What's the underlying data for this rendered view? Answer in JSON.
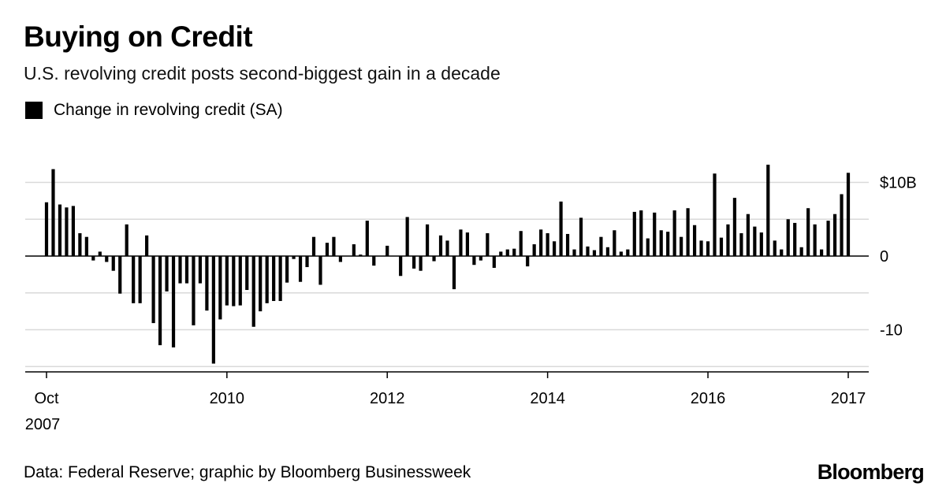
{
  "title": "Buying on Credit",
  "subtitle": "U.S. revolving credit posts second-biggest gain in a decade",
  "source": "Data: Federal Reserve; graphic by Bloomberg Businessweek",
  "brand": "Bloomberg",
  "chart_data": {
    "type": "bar",
    "title": "Buying on Credit",
    "subtitle": "U.S. revolving credit posts second-biggest gain in a decade",
    "legend": [
      {
        "name": "Change in revolving credit (SA)",
        "color": "#000000"
      }
    ],
    "legend_placement": "top-left",
    "grid": true,
    "y_axis_side": "right",
    "ylim": [
      -15,
      12
    ],
    "y_ticks": [
      {
        "value": 10,
        "label": "$10B"
      },
      {
        "value": 0,
        "label": "0"
      },
      {
        "value": -10,
        "label": "-10"
      }
    ],
    "x_ticks": [
      {
        "index": 0,
        "label": "Oct",
        "sublabel": "2007"
      },
      {
        "index": 27,
        "label": "2010",
        "sublabel": ""
      },
      {
        "index": 51,
        "label": "2012",
        "sublabel": ""
      },
      {
        "index": 75,
        "label": "2014",
        "sublabel": ""
      },
      {
        "index": 99,
        "label": "2016",
        "sublabel": ""
      },
      {
        "index": 120,
        "label": "2017",
        "sublabel": ""
      }
    ],
    "series": [
      {
        "name": "Change in revolving credit (SA)",
        "color": "#000000",
        "start": "2007-10",
        "frequency": "monthly",
        "values": [
          7.3,
          11.8,
          7.0,
          6.6,
          6.8,
          3.1,
          2.6,
          -0.6,
          0.6,
          -0.8,
          -2.0,
          -5.1,
          4.3,
          -6.4,
          -6.4,
          2.8,
          -9.1,
          -12.1,
          -4.8,
          -12.4,
          -3.7,
          -3.7,
          -9.4,
          -3.7,
          -7.4,
          -14.6,
          -8.6,
          -6.7,
          -6.8,
          -6.7,
          -4.6,
          -9.6,
          -7.5,
          -6.4,
          -6.1,
          -6.1,
          -3.6,
          -0.4,
          -3.5,
          -1.5,
          2.6,
          -3.9,
          1.8,
          2.6,
          -0.8,
          0.0,
          1.6,
          0.2,
          4.8,
          -1.3,
          0.0,
          1.4,
          0.0,
          -2.7,
          5.3,
          -1.7,
          -2.0,
          4.3,
          -0.7,
          2.8,
          2.1,
          -4.5,
          3.6,
          3.2,
          -1.2,
          -0.6,
          3.1,
          -1.6,
          0.6,
          0.9,
          1.0,
          3.4,
          -1.4,
          1.6,
          3.6,
          3.1,
          2.0,
          7.4,
          3.0,
          0.9,
          5.2,
          1.3,
          0.8,
          2.6,
          1.2,
          3.5,
          0.6,
          0.9,
          6.0,
          6.2,
          2.4,
          5.9,
          3.5,
          3.3,
          6.2,
          2.6,
          6.5,
          4.2,
          2.1,
          2.0,
          11.2,
          2.5,
          4.3,
          7.9,
          3.1,
          5.7,
          4.0,
          3.2,
          12.4,
          2.1,
          0.9,
          5.0,
          4.5,
          1.2,
          6.5,
          4.3,
          0.9,
          4.8,
          5.7,
          8.4,
          11.3
        ]
      }
    ]
  }
}
